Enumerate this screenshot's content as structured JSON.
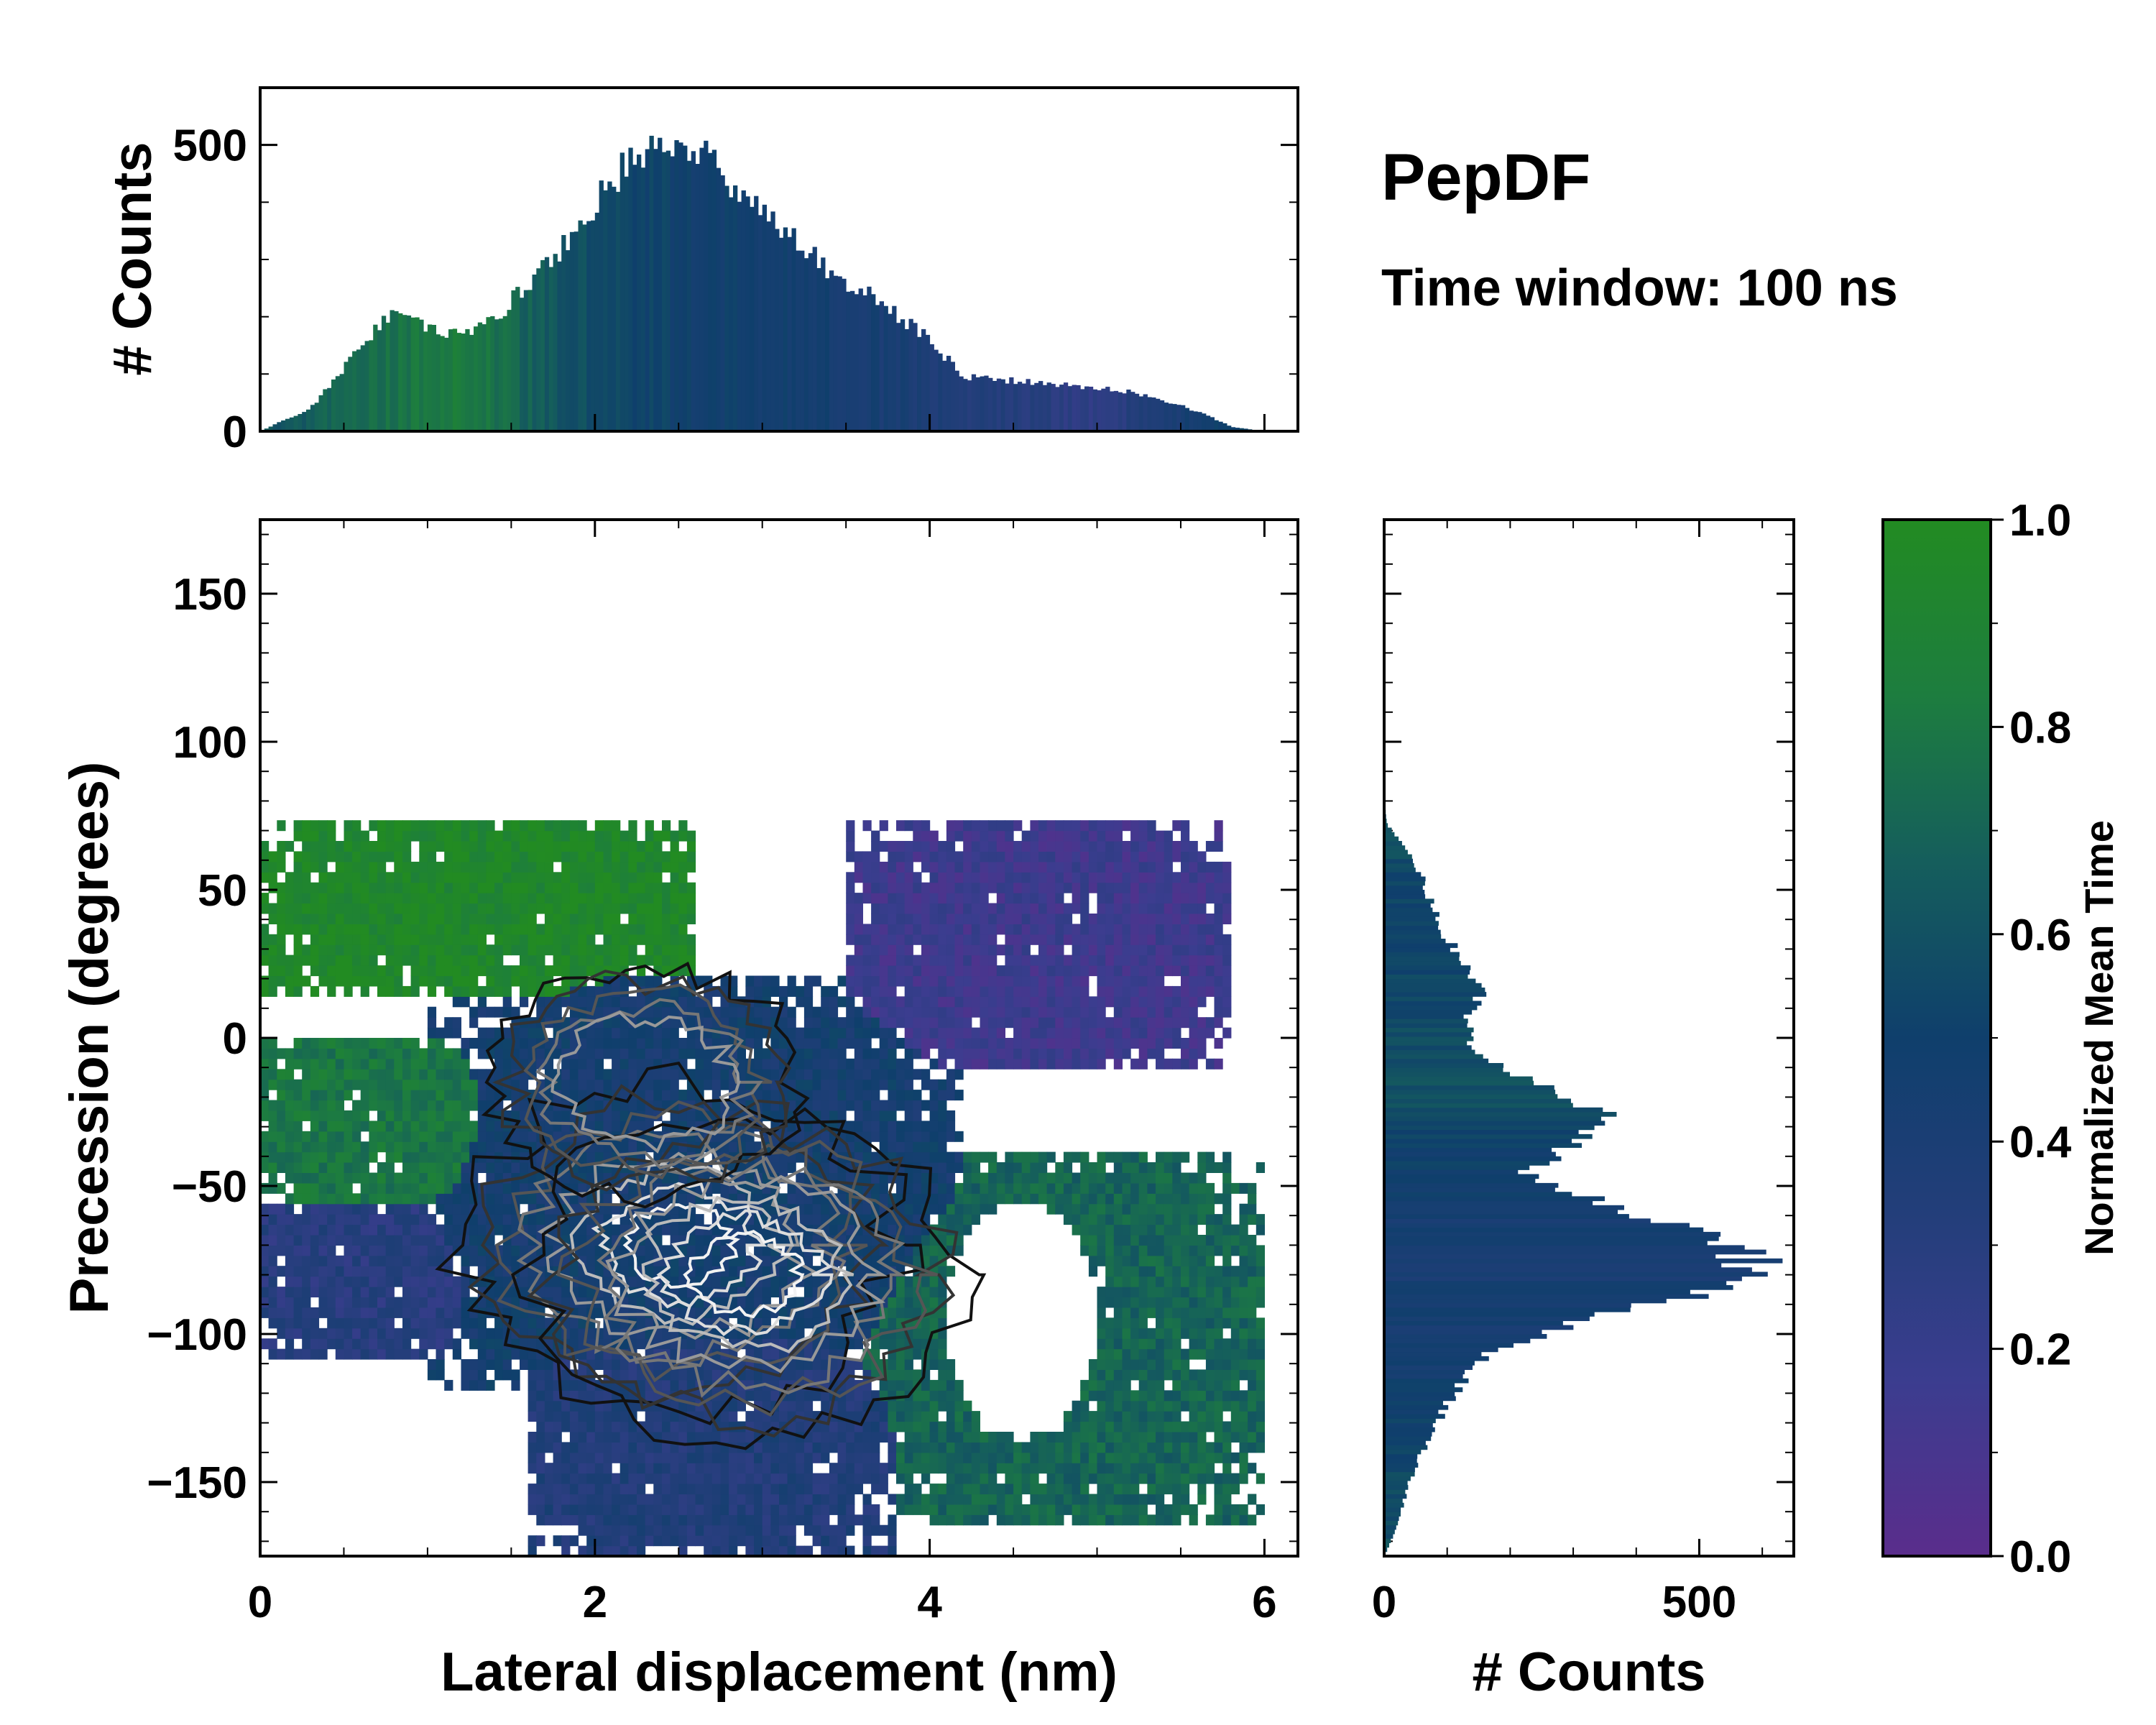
{
  "figure": {
    "title": "PepDF",
    "subtitle": "Time window: 100 ns"
  },
  "chart_data": [
    {
      "id": "joint",
      "type": "heatmap",
      "xlabel": "Lateral displacement (nm)",
      "ylabel": "Precession (degrees)",
      "xlim": [
        0,
        6.2
      ],
      "ylim": [
        -175,
        175
      ],
      "xticks": [
        0,
        2,
        4,
        6
      ],
      "xtick_labels": [
        "0",
        "2",
        "4",
        "6"
      ],
      "yticks": [
        -150,
        -100,
        -50,
        0,
        50,
        100,
        150
      ],
      "ytick_labels": [
        "−150",
        "−100",
        "−50",
        "0",
        "50",
        "100",
        "150"
      ],
      "color_value": "Normalized Mean Time",
      "regions": [
        {
          "name": "upper-left",
          "x_range": [
            0,
            2.6
          ],
          "y_range": [
            15,
            75
          ],
          "normalized_mean_time": 0.95
        },
        {
          "name": "upper-right",
          "x_range": [
            3.5,
            5.8
          ],
          "y_range": [
            -10,
            75
          ],
          "normalized_mean_time": 0.15
        },
        {
          "name": "center-left",
          "x_range": [
            0,
            1.4
          ],
          "y_range": [
            -60,
            0
          ],
          "normalized_mean_time": 0.8
        },
        {
          "name": "center",
          "x_range": [
            1.0,
            4.2
          ],
          "y_range": [
            -120,
            20
          ],
          "normalized_mean_time": 0.45
        },
        {
          "name": "lower-left",
          "x_range": [
            0,
            1.2
          ],
          "y_range": [
            -110,
            -50
          ],
          "normalized_mean_time": 0.3
        },
        {
          "name": "lower-middle",
          "x_range": [
            1.6,
            3.8
          ],
          "y_range": [
            -175,
            -90
          ],
          "normalized_mean_time": 0.35
        },
        {
          "name": "lower-right",
          "x_range": [
            3.6,
            6.0
          ],
          "y_range": [
            -165,
            -40
          ],
          "normalized_mean_time": 0.7
        }
      ],
      "density_peaks": [
        {
          "x": 2.5,
          "y": -70
        },
        {
          "x": 2.9,
          "y": -80
        },
        {
          "x": 2.3,
          "y": -15
        }
      ]
    },
    {
      "id": "top-marginal",
      "type": "bar",
      "ylabel": "# Counts",
      "ylim": [
        0,
        600
      ],
      "yticks": [
        0,
        500
      ],
      "ytick_labels": [
        "0",
        "500"
      ],
      "x_profile": [
        {
          "x": 0.0,
          "count": 0
        },
        {
          "x": 0.3,
          "count": 40
        },
        {
          "x": 0.5,
          "count": 110
        },
        {
          "x": 0.7,
          "count": 180
        },
        {
          "x": 0.8,
          "count": 215
        },
        {
          "x": 1.0,
          "count": 180
        },
        {
          "x": 1.2,
          "count": 165
        },
        {
          "x": 1.4,
          "count": 195
        },
        {
          "x": 1.6,
          "count": 260
        },
        {
          "x": 1.8,
          "count": 320
        },
        {
          "x": 2.0,
          "count": 400
        },
        {
          "x": 2.2,
          "count": 470
        },
        {
          "x": 2.35,
          "count": 500
        },
        {
          "x": 2.5,
          "count": 520
        },
        {
          "x": 2.65,
          "count": 490
        },
        {
          "x": 2.8,
          "count": 440
        },
        {
          "x": 3.0,
          "count": 380
        },
        {
          "x": 3.2,
          "count": 330
        },
        {
          "x": 3.4,
          "count": 280
        },
        {
          "x": 3.6,
          "count": 245
        },
        {
          "x": 3.8,
          "count": 205
        },
        {
          "x": 4.0,
          "count": 160
        },
        {
          "x": 4.2,
          "count": 95
        },
        {
          "x": 4.5,
          "count": 88
        },
        {
          "x": 4.8,
          "count": 80
        },
        {
          "x": 5.0,
          "count": 75
        },
        {
          "x": 5.2,
          "count": 70
        },
        {
          "x": 5.4,
          "count": 55
        },
        {
          "x": 5.6,
          "count": 35
        },
        {
          "x": 5.8,
          "count": 8
        },
        {
          "x": 6.0,
          "count": 0
        },
        {
          "x": 6.2,
          "count": 0
        }
      ],
      "time_profile": [
        {
          "x": 0.0,
          "t": 0.6
        },
        {
          "x": 1.2,
          "t": 0.85
        },
        {
          "x": 1.8,
          "t": 0.6
        },
        {
          "x": 2.5,
          "t": 0.5
        },
        {
          "x": 3.5,
          "t": 0.45
        },
        {
          "x": 4.2,
          "t": 0.35
        },
        {
          "x": 5.0,
          "t": 0.25
        },
        {
          "x": 5.6,
          "t": 0.45
        },
        {
          "x": 6.2,
          "t": 0.7
        }
      ]
    },
    {
      "id": "right-marginal",
      "type": "bar",
      "xlabel": "# Counts",
      "xlim": [
        0,
        650
      ],
      "xticks": [
        0,
        500
      ],
      "xtick_labels": [
        "0",
        "500"
      ],
      "y_profile": [
        {
          "y": -175,
          "count": 0
        },
        {
          "y": -165,
          "count": 20
        },
        {
          "y": -150,
          "count": 40
        },
        {
          "y": -135,
          "count": 70
        },
        {
          "y": -120,
          "count": 110
        },
        {
          "y": -105,
          "count": 170
        },
        {
          "y": -95,
          "count": 330
        },
        {
          "y": -85,
          "count": 530
        },
        {
          "y": -75,
          "count": 590
        },
        {
          "y": -65,
          "count": 490
        },
        {
          "y": -55,
          "count": 330
        },
        {
          "y": -45,
          "count": 230
        },
        {
          "y": -35,
          "count": 300
        },
        {
          "y": -25,
          "count": 350
        },
        {
          "y": -15,
          "count": 230
        },
        {
          "y": -5,
          "count": 150
        },
        {
          "y": 5,
          "count": 130
        },
        {
          "y": 15,
          "count": 150
        },
        {
          "y": 25,
          "count": 130
        },
        {
          "y": 35,
          "count": 95
        },
        {
          "y": 45,
          "count": 75
        },
        {
          "y": 55,
          "count": 60
        },
        {
          "y": 65,
          "count": 30
        },
        {
          "y": 72,
          "count": 5
        },
        {
          "y": 80,
          "count": 0
        },
        {
          "y": 175,
          "count": 0
        }
      ],
      "time_profile": [
        {
          "y": -175,
          "t": 0.6
        },
        {
          "y": -150,
          "t": 0.55
        },
        {
          "y": -110,
          "t": 0.45
        },
        {
          "y": -70,
          "t": 0.42
        },
        {
          "y": -40,
          "t": 0.5
        },
        {
          "y": -20,
          "t": 0.6
        },
        {
          "y": 10,
          "t": 0.55
        },
        {
          "y": 40,
          "t": 0.5
        },
        {
          "y": 70,
          "t": 0.6
        }
      ]
    },
    {
      "id": "colorbar",
      "type": "colorbar",
      "label": "Normalized Mean Time",
      "range": [
        0.0,
        1.0
      ],
      "ticks": [
        0.0,
        0.2,
        0.4,
        0.6,
        0.8,
        1.0
      ],
      "tick_labels": [
        "0.0",
        "0.2",
        "0.4",
        "0.6",
        "0.8",
        "1.0"
      ],
      "color_stops": [
        "#5a2d8c",
        "#3b3d8f",
        "#233e7a",
        "#0f3f6c",
        "#155e5c",
        "#1d7d3f",
        "#228b22"
      ]
    }
  ]
}
